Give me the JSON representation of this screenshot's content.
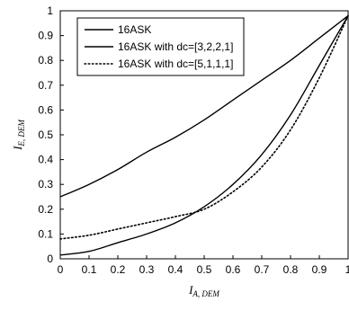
{
  "chart_data": {
    "type": "line",
    "xlabel": {
      "main": "I",
      "sub": "A, DEM"
    },
    "ylabel": {
      "main": "I",
      "sub": "E, DEM"
    },
    "xlim": [
      0,
      1
    ],
    "ylim": [
      0,
      1
    ],
    "xticks": [
      "0",
      "0.1",
      "0.2",
      "0.3",
      "0.4",
      "0.5",
      "0.6",
      "0.7",
      "0.8",
      "0.9",
      "1"
    ],
    "yticks": [
      "0",
      "0.1",
      "0.2",
      "0.3",
      "0.4",
      "0.5",
      "0.6",
      "0.7",
      "0.8",
      "0.9",
      "1"
    ],
    "grid": false,
    "legend_position": "top-left",
    "series": [
      {
        "name": "16ASK",
        "style": "solid",
        "x": [
          0,
          0.1,
          0.2,
          0.3,
          0.4,
          0.5,
          0.6,
          0.7,
          0.8,
          0.9,
          1.0
        ],
        "y": [
          0.25,
          0.3,
          0.36,
          0.43,
          0.49,
          0.56,
          0.64,
          0.72,
          0.8,
          0.89,
          0.98
        ]
      },
      {
        "name": "16ASK with dc=[3,2,2,1]",
        "style": "solid",
        "x": [
          0,
          0.1,
          0.2,
          0.3,
          0.4,
          0.5,
          0.6,
          0.7,
          0.8,
          0.9,
          1.0
        ],
        "y": [
          0.015,
          0.03,
          0.065,
          0.1,
          0.145,
          0.21,
          0.3,
          0.42,
          0.58,
          0.78,
          0.98
        ]
      },
      {
        "name": "16ASK with dc=[5,1,1,1]",
        "style": "dotted",
        "x": [
          0,
          0.1,
          0.2,
          0.3,
          0.4,
          0.5,
          0.6,
          0.7,
          0.8,
          0.9,
          1.0
        ],
        "y": [
          0.08,
          0.095,
          0.12,
          0.145,
          0.17,
          0.2,
          0.27,
          0.37,
          0.52,
          0.73,
          0.98
        ]
      }
    ]
  }
}
